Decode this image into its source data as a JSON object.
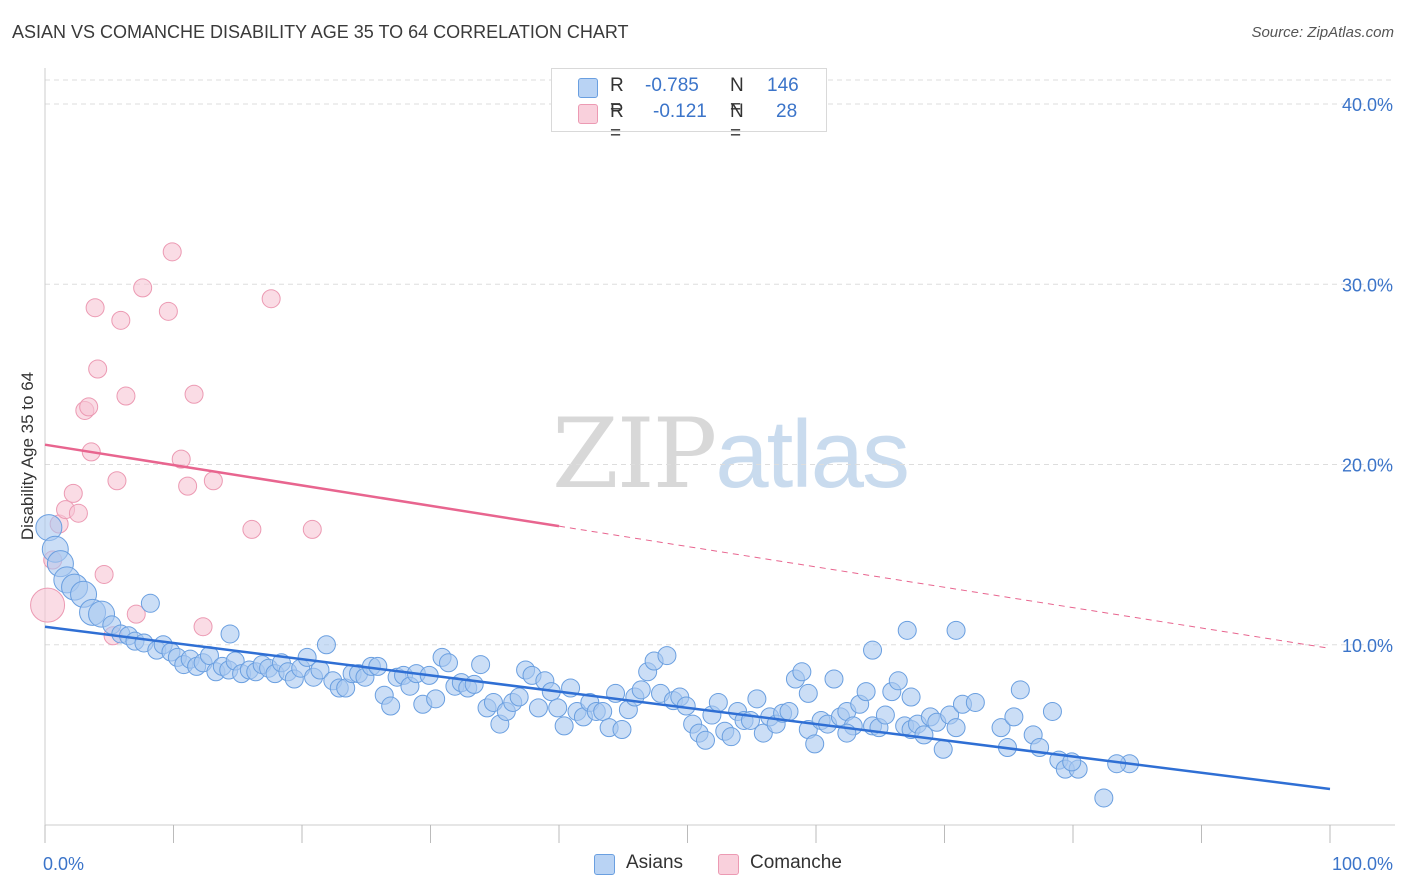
{
  "header": {
    "title": "ASIAN VS COMANCHE DISABILITY AGE 35 TO 64 CORRELATION CHART",
    "source": "Source: ZipAtlas.com"
  },
  "watermark": {
    "zip": "ZIP",
    "atlas": "atlas"
  },
  "legend": {
    "rows": [
      {
        "r_label": "R =",
        "r_value": "-0.785",
        "n_label": "N =",
        "n_value": "146"
      },
      {
        "r_label": "R =",
        "r_value": "-0.121",
        "n_label": "N =",
        "n_value": "28"
      }
    ]
  },
  "bottom_legend": {
    "asians": "Asians",
    "comanche": "Comanche"
  },
  "colors": {
    "asians_fill": "#a9c8f0",
    "asians_stroke": "#6a9fe0",
    "asians_line": "#2f6fd4",
    "comanche_fill": "#f7c4d3",
    "comanche_stroke": "#ec9ab3",
    "comanche_line": "#e8658f",
    "tick_label": "#3b74c9",
    "grid": "#dddddd"
  },
  "chart_data": {
    "type": "scatter",
    "title": "ASIAN VS COMANCHE DISABILITY AGE 35 TO 64 CORRELATION CHART",
    "ylabel": "Disability Age 35 to 64",
    "xlabel": "",
    "xlim": [
      0,
      100
    ],
    "ylim": [
      0,
      42
    ],
    "x_tick_labels": [
      "0.0%",
      "100.0%"
    ],
    "y_ticks": [
      10,
      20,
      30,
      40
    ],
    "y_tick_labels": [
      "10.0%",
      "20.0%",
      "30.0%",
      "40.0%"
    ],
    "grid": true,
    "legend_position": "top-center",
    "series": [
      {
        "name": "Asians",
        "r": -0.785,
        "n": 146,
        "trend": {
          "x0": 0,
          "y0": 11.0,
          "x1": 100,
          "y1": 2.0,
          "solid_until": 100
        },
        "points": [
          [
            0.3,
            16.5,
            1
          ],
          [
            0.8,
            15.3,
            1
          ],
          [
            1.2,
            14.5,
            1
          ],
          [
            1.7,
            13.6,
            1
          ],
          [
            2.3,
            13.2,
            1
          ],
          [
            3.0,
            12.8,
            1
          ],
          [
            3.7,
            11.8,
            1
          ],
          [
            4.4,
            11.7,
            1
          ],
          [
            5.2,
            11.1,
            0
          ],
          [
            5.9,
            10.6,
            0
          ],
          [
            6.5,
            10.5,
            0
          ],
          [
            7.0,
            10.2,
            0
          ],
          [
            7.7,
            10.1,
            0
          ],
          [
            8.2,
            12.3,
            0
          ],
          [
            8.7,
            9.7,
            0
          ],
          [
            9.2,
            10.0,
            0
          ],
          [
            9.8,
            9.6,
            0
          ],
          [
            10.3,
            9.3,
            0
          ],
          [
            10.8,
            8.9,
            0
          ],
          [
            11.3,
            9.2,
            0
          ],
          [
            11.8,
            8.8,
            0
          ],
          [
            12.3,
            9.0,
            0
          ],
          [
            12.8,
            9.4,
            0
          ],
          [
            13.3,
            8.5,
            0
          ],
          [
            13.8,
            8.8,
            0
          ],
          [
            14.3,
            8.6,
            0
          ],
          [
            14.8,
            9.1,
            0
          ],
          [
            15.3,
            8.4,
            0
          ],
          [
            14.4,
            10.6,
            0
          ],
          [
            15.9,
            8.6,
            0
          ],
          [
            16.4,
            8.5,
            0
          ],
          [
            16.9,
            8.9,
            0
          ],
          [
            17.4,
            8.7,
            0
          ],
          [
            17.9,
            8.4,
            0
          ],
          [
            18.4,
            9.0,
            0
          ],
          [
            18.9,
            8.5,
            0
          ],
          [
            19.4,
            8.1,
            0
          ],
          [
            19.9,
            8.7,
            0
          ],
          [
            20.4,
            9.3,
            0
          ],
          [
            20.9,
            8.2,
            0
          ],
          [
            21.4,
            8.6,
            0
          ],
          [
            21.9,
            10.0,
            0
          ],
          [
            22.4,
            8.0,
            0
          ],
          [
            22.9,
            7.6,
            0
          ],
          [
            23.4,
            7.6,
            0
          ],
          [
            23.9,
            8.4,
            0
          ],
          [
            24.4,
            8.4,
            0
          ],
          [
            24.9,
            8.2,
            0
          ],
          [
            25.4,
            8.8,
            0
          ],
          [
            25.9,
            8.8,
            0
          ],
          [
            26.4,
            7.2,
            0
          ],
          [
            26.9,
            6.6,
            0
          ],
          [
            27.4,
            8.2,
            0
          ],
          [
            27.9,
            8.3,
            0
          ],
          [
            28.4,
            7.7,
            0
          ],
          [
            28.9,
            8.4,
            0
          ],
          [
            29.4,
            6.7,
            0
          ],
          [
            29.9,
            8.3,
            0
          ],
          [
            30.4,
            7.0,
            0
          ],
          [
            30.9,
            9.3,
            0
          ],
          [
            31.4,
            9.0,
            0
          ],
          [
            31.9,
            7.7,
            0
          ],
          [
            32.4,
            7.9,
            0
          ],
          [
            32.9,
            7.6,
            0
          ],
          [
            33.4,
            7.8,
            0
          ],
          [
            33.9,
            8.9,
            0
          ],
          [
            34.4,
            6.5,
            0
          ],
          [
            34.9,
            6.8,
            0
          ],
          [
            35.4,
            5.6,
            0
          ],
          [
            35.9,
            6.3,
            0
          ],
          [
            36.4,
            6.8,
            0
          ],
          [
            36.9,
            7.1,
            0
          ],
          [
            37.4,
            8.6,
            0
          ],
          [
            37.9,
            8.3,
            0
          ],
          [
            38.4,
            6.5,
            0
          ],
          [
            38.9,
            8.0,
            0
          ],
          [
            39.4,
            7.4,
            0
          ],
          [
            39.9,
            6.5,
            0
          ],
          [
            40.4,
            5.5,
            0
          ],
          [
            40.9,
            7.6,
            0
          ],
          [
            41.4,
            6.3,
            0
          ],
          [
            41.9,
            6.0,
            0
          ],
          [
            42.4,
            6.8,
            0
          ],
          [
            42.9,
            6.3,
            0
          ],
          [
            43.4,
            6.3,
            0
          ],
          [
            43.9,
            5.4,
            0
          ],
          [
            44.4,
            7.3,
            0
          ],
          [
            44.9,
            5.3,
            0
          ],
          [
            45.4,
            6.4,
            0
          ],
          [
            45.9,
            7.1,
            0
          ],
          [
            46.4,
            7.5,
            0
          ],
          [
            46.9,
            8.5,
            0
          ],
          [
            47.4,
            9.1,
            0
          ],
          [
            47.9,
            7.3,
            0
          ],
          [
            48.4,
            9.4,
            0
          ],
          [
            48.9,
            6.9,
            0
          ],
          [
            49.4,
            7.1,
            0
          ],
          [
            49.9,
            6.6,
            0
          ],
          [
            50.4,
            5.6,
            0
          ],
          [
            50.9,
            5.1,
            0
          ],
          [
            51.4,
            4.7,
            0
          ],
          [
            51.9,
            6.1,
            0
          ],
          [
            52.4,
            6.8,
            0
          ],
          [
            52.9,
            5.2,
            0
          ],
          [
            53.4,
            4.9,
            0
          ],
          [
            53.9,
            6.3,
            0
          ],
          [
            54.4,
            5.8,
            0
          ],
          [
            54.9,
            5.8,
            0
          ],
          [
            55.4,
            7.0,
            0
          ],
          [
            55.9,
            5.1,
            0
          ],
          [
            56.4,
            6.0,
            0
          ],
          [
            56.9,
            5.6,
            0
          ],
          [
            57.4,
            6.2,
            0
          ],
          [
            57.9,
            6.3,
            0
          ],
          [
            58.4,
            8.1,
            0
          ],
          [
            58.9,
            8.5,
            0
          ],
          [
            59.4,
            5.3,
            0
          ],
          [
            59.9,
            4.5,
            0
          ],
          [
            60.4,
            5.8,
            0
          ],
          [
            60.9,
            5.6,
            0
          ],
          [
            61.4,
            8.1,
            0
          ],
          [
            61.9,
            6.0,
            0
          ],
          [
            62.4,
            6.3,
            0
          ],
          [
            62.9,
            5.5,
            0
          ],
          [
            63.4,
            6.7,
            0
          ],
          [
            63.9,
            7.4,
            0
          ],
          [
            64.4,
            5.5,
            0
          ],
          [
            64.9,
            5.4,
            0
          ],
          [
            65.4,
            6.1,
            0
          ],
          [
            65.9,
            7.4,
            0
          ],
          [
            66.4,
            8.0,
            0
          ],
          [
            66.9,
            5.5,
            0
          ],
          [
            67.4,
            5.3,
            0
          ],
          [
            67.9,
            5.6,
            0
          ],
          [
            68.4,
            5.0,
            0
          ],
          [
            68.9,
            6.0,
            0
          ],
          [
            69.4,
            5.7,
            0
          ],
          [
            69.9,
            4.2,
            0
          ],
          [
            70.4,
            6.1,
            0
          ],
          [
            70.9,
            5.4,
            0
          ],
          [
            71.4,
            6.7,
            0
          ],
          [
            72.4,
            6.8,
            0
          ],
          [
            74.4,
            5.4,
            0
          ],
          [
            74.9,
            4.3,
            0
          ],
          [
            75.4,
            6.0,
            0
          ],
          [
            76.9,
            5.0,
            0
          ],
          [
            77.4,
            4.3,
            0
          ],
          [
            78.9,
            3.6,
            0
          ],
          [
            79.4,
            3.1,
            0
          ],
          [
            80.4,
            3.1,
            0
          ],
          [
            82.4,
            1.5,
            0
          ],
          [
            84.4,
            3.4,
            0
          ],
          [
            64.4,
            9.7,
            0
          ],
          [
            67.1,
            10.8,
            0
          ],
          [
            70.9,
            10.8,
            0
          ],
          [
            75.9,
            7.5,
            0
          ],
          [
            78.4,
            6.3,
            0
          ],
          [
            59.4,
            7.3,
            0
          ],
          [
            62.4,
            5.1,
            0
          ],
          [
            79.9,
            3.5,
            0
          ],
          [
            83.4,
            3.4,
            0
          ],
          [
            67.4,
            7.1,
            0
          ]
        ]
      },
      {
        "name": "Comanche",
        "r": -0.121,
        "n": 28,
        "trend": {
          "x0": 0,
          "y0": 21.1,
          "x1": 100,
          "y1": 9.8,
          "solid_until": 40
        },
        "points": [
          [
            0.2,
            12.2,
            1
          ],
          [
            0.6,
            14.7,
            0
          ],
          [
            1.1,
            16.7,
            0
          ],
          [
            1.6,
            17.5,
            0
          ],
          [
            2.2,
            18.4,
            0
          ],
          [
            2.6,
            17.3,
            0
          ],
          [
            3.1,
            23.0,
            0
          ],
          [
            3.4,
            23.2,
            0
          ],
          [
            3.6,
            20.7,
            0
          ],
          [
            3.9,
            28.7,
            0
          ],
          [
            4.1,
            25.3,
            0
          ],
          [
            4.6,
            13.9,
            0
          ],
          [
            5.3,
            10.5,
            0
          ],
          [
            5.6,
            19.1,
            0
          ],
          [
            5.9,
            28.0,
            0
          ],
          [
            6.3,
            23.8,
            0
          ],
          [
            7.1,
            11.7,
            0
          ],
          [
            7.6,
            29.8,
            0
          ],
          [
            9.6,
            28.5,
            0
          ],
          [
            9.9,
            31.8,
            0
          ],
          [
            10.6,
            20.3,
            0
          ],
          [
            11.1,
            18.8,
            0
          ],
          [
            11.6,
            23.9,
            0
          ],
          [
            12.3,
            11.0,
            0
          ],
          [
            13.1,
            19.1,
            0
          ],
          [
            16.1,
            16.4,
            0
          ],
          [
            17.6,
            29.2,
            0
          ],
          [
            20.8,
            16.4,
            0
          ]
        ]
      }
    ]
  }
}
